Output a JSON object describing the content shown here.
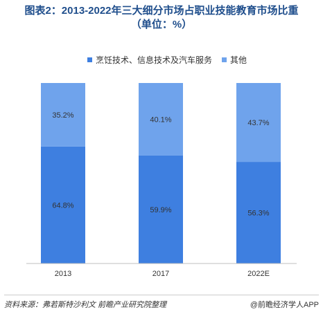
{
  "title_line1": "图表2：2013-2022年三大细分市场占职业技能教育市场比重",
  "title_line2": "（单位：%）",
  "colors": {
    "series1": "#3e7fe0",
    "series2": "#6fa3ec",
    "title": "#1f4e8c"
  },
  "chart_data": {
    "type": "bar",
    "stacked": true,
    "categories": [
      "2013",
      "2017",
      "2022E"
    ],
    "series": [
      {
        "name": "烹饪技术、信息技术及汽车服务",
        "values": [
          64.8,
          59.9,
          56.3
        ],
        "labels": [
          "64.8%",
          "59.9%",
          "56.3%"
        ]
      },
      {
        "name": "其他",
        "values": [
          35.2,
          40.1,
          43.7
        ],
        "labels": [
          "35.2%",
          "40.1%",
          "43.7%"
        ]
      }
    ],
    "ylim": [
      0,
      100
    ],
    "legend_position": "top",
    "grid": false
  },
  "footer": {
    "source": "资料来源：弗若斯特沙利文  前瞻产业研究院整理",
    "brand": "@前瞻经济学人APP"
  }
}
